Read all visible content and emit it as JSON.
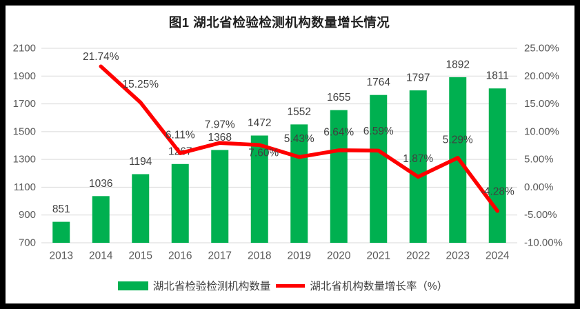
{
  "window": {
    "background": "#FFFFFF",
    "border_color": "#000000"
  },
  "chart_data": {
    "type": "bar+line combo",
    "title": "图1 湖北省检验检测机构数量增长情况",
    "categories": [
      "2013",
      "2014",
      "2015",
      "2016",
      "2017",
      "2018",
      "2019",
      "2020",
      "2021",
      "2022",
      "2023",
      "2024"
    ],
    "series": [
      {
        "name": "湖北省检验检测机构数量",
        "type": "bar",
        "axis": "left",
        "color": "#00B050",
        "values": [
          851,
          1036,
          1194,
          1267,
          1368,
          1472,
          1552,
          1655,
          1764,
          1797,
          1892,
          1811
        ],
        "labels": [
          "851",
          "1036",
          "1194",
          "1267",
          "1368",
          "1472",
          "1552",
          "1655",
          "1764",
          "1797",
          "1892",
          "1811"
        ]
      },
      {
        "name": "湖北省机构数量增长率（%）",
        "type": "line",
        "axis": "right",
        "color": "#FF0000",
        "values": [
          null,
          21.74,
          15.25,
          6.11,
          7.97,
          7.6,
          5.43,
          6.64,
          6.59,
          1.87,
          5.29,
          -4.28
        ],
        "labels": [
          null,
          "21.74%",
          "15.25%",
          "6.11%",
          "7.97%",
          "7.60%",
          "5.43%",
          "6.64%",
          "6.59%",
          "1.87%",
          "5.29%",
          "-4.28%"
        ]
      }
    ],
    "left_axis": {
      "min": 700,
      "max": 2100,
      "step": 200,
      "tick_labels": [
        "2100",
        "1900",
        "1700",
        "1500",
        "1300",
        "1100",
        "900",
        "700"
      ]
    },
    "right_axis": {
      "min": -10,
      "max": 25,
      "step": 5,
      "tick_labels": [
        "25.00%",
        "20.00%",
        "15.00%",
        "10.00%",
        "5.00%",
        "0.00%",
        "-5.00%",
        "-10.00%"
      ]
    },
    "grid": "horizontal",
    "grid_color": "#D9D9D9",
    "legend_position": "bottom",
    "bar_label_dy": -18,
    "line_label_offsets": {
      "default_dx": 0,
      "default_dy": -26,
      "overrides": {
        "1": {
          "dy": -14
        },
        "5": {
          "dx": 6,
          "dy": 12
        },
        "8": {
          "dy": -28
        },
        "11": {
          "dy": -28
        }
      }
    }
  }
}
